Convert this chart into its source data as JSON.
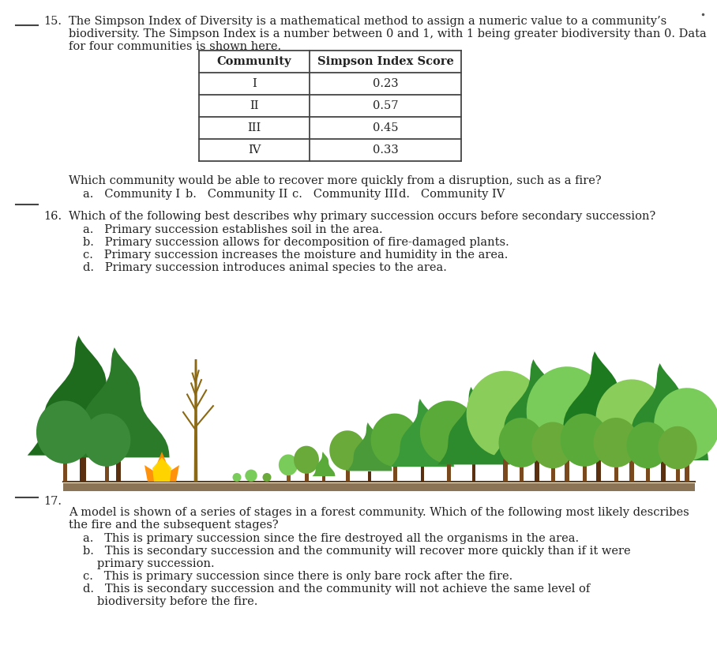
{
  "bg_color": "#f0f0f0",
  "page_bg": "#ffffff",
  "q15_number": "15.",
  "q15_text_line1": "The Simpson Index of Diversity is a mathematical method to assign a numeric value to a community’s",
  "q15_text_line2": "biodiversity. The Simpson Index is a number between 0 and 1, with 1 being greater biodiversity than 0. Data",
  "q15_text_line3": "for four communities is shown here.",
  "table_headers": [
    "Community",
    "Simpson Index Score"
  ],
  "table_rows": [
    [
      "I",
      "0.23"
    ],
    [
      "II",
      "0.57"
    ],
    [
      "III",
      "0.45"
    ],
    [
      "IV",
      "0.33"
    ]
  ],
  "q15_follow": "Which community would be able to recover more quickly from a disruption, such as a fire?",
  "q15_choices_a": "a.   Community I",
  "q15_choices_b": "b.   Community II",
  "q15_choices_c": "c.   Community III",
  "q15_choices_d": "d.   Community IV",
  "q16_number": "16.",
  "q16_text": "Which of the following best describes why primary succession occurs before secondary succession?",
  "q16_a": "a.   Primary succession establishes soil in the area.",
  "q16_b": "b.   Primary succession allows for decomposition of fire-damaged plants.",
  "q16_c": "c.   Primary succession increases the moisture and humidity in the area.",
  "q16_d": "d.   Primary succession introduces animal species to the area.",
  "q17_number": "17.",
  "q17_text_line1": "A model is shown of a series of stages in a forest community. Which of the following most likely describes",
  "q17_text_line2": "the fire and the subsequent stages?",
  "q17_a": "a.   This is primary succession since the fire destroyed all the organisms in the area.",
  "q17_b": "b.   This is secondary succession and the community will recover more quickly than if it were",
  "q17_b2": "        primary succession.",
  "q17_c": "c.   This is primary succession since there is only bare rock after the fire.",
  "q17_d": "d.   This is secondary succession and the community will not achieve the same level of",
  "q17_d2": "        biodiversity before the fire.",
  "text_color": "#222222",
  "table_border": "#444444"
}
